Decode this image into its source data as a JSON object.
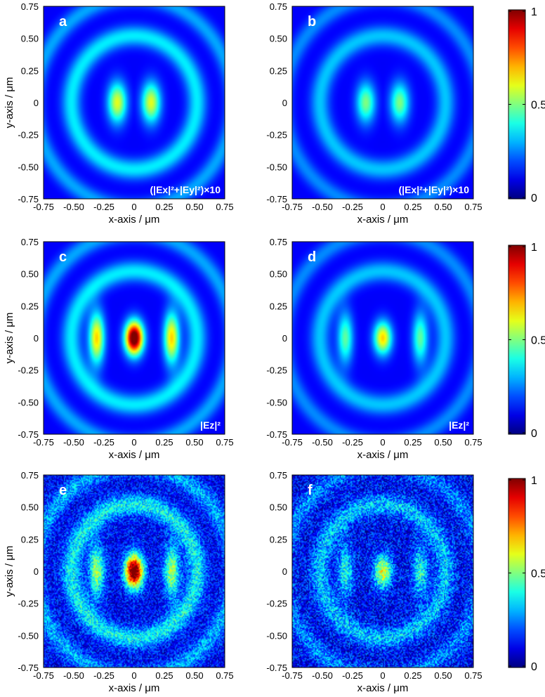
{
  "colorbar_ticks": [
    "1",
    "0.5",
    "0"
  ],
  "axis_ticks": [
    "-0.75",
    "-0.50",
    "-0.25",
    "0",
    "0.25",
    "0.50",
    "0.75"
  ],
  "colors": {
    "jet": [
      "#00008f",
      "#0000ff",
      "#00ffff",
      "#ffff00",
      "#ff0000",
      "#800000"
    ],
    "panel_background": "#0a1f9c",
    "panel_label": "#ffffff"
  },
  "chart_data": [
    {
      "panel": "a",
      "type": "heatmap",
      "xlabel": "x-axis / μm",
      "ylabel": "y-axis / μm",
      "xlim": [
        -0.75,
        0.75
      ],
      "ylim": [
        -0.75,
        0.75
      ],
      "annotation": "(|Ex|²+|Ey|²)×10",
      "colorscale": "jet",
      "zlim": [
        0,
        1
      ],
      "features": {
        "center_lobe_peak": 0.48,
        "side_lobe_peak": 0.0,
        "ring_level": 0.24,
        "noise": 0
      }
    },
    {
      "panel": "b",
      "type": "heatmap",
      "xlabel": "x-axis / μm",
      "ylabel": "",
      "xlim": [
        -0.75,
        0.75
      ],
      "ylim": [
        -0.75,
        0.75
      ],
      "annotation": "(|Ex|²+|Ey|²)×10",
      "colorscale": "jet",
      "zlim": [
        0,
        1
      ],
      "features": {
        "center_lobe_peak": 0.38,
        "side_lobe_peak": 0.0,
        "ring_level": 0.2,
        "noise": 0
      }
    },
    {
      "panel": "c",
      "type": "heatmap",
      "xlabel": "x-axis / μm",
      "ylabel": "y-axis / μm",
      "xlim": [
        -0.75,
        0.75
      ],
      "ylim": [
        -0.75,
        0.75
      ],
      "annotation": "|Ez|²",
      "colorscale": "jet",
      "zlim": [
        0,
        1
      ],
      "features": {
        "center_peak": 1.0,
        "side_lobe_peak": 0.55,
        "ring_level": 0.24,
        "noise": 0
      }
    },
    {
      "panel": "d",
      "type": "heatmap",
      "xlabel": "x-axis / μm",
      "ylabel": "",
      "xlim": [
        -0.75,
        0.75
      ],
      "ylim": [
        -0.75,
        0.75
      ],
      "annotation": "|Ez|²",
      "colorscale": "jet",
      "zlim": [
        0,
        1
      ],
      "features": {
        "center_peak": 0.55,
        "side_lobe_peak": 0.35,
        "ring_level": 0.2,
        "noise": 0
      }
    },
    {
      "panel": "e",
      "type": "heatmap",
      "xlabel": "x-axis / μm",
      "ylabel": "y-axis / μm",
      "xlim": [
        -0.75,
        0.75
      ],
      "ylim": [
        -0.75,
        0.75
      ],
      "annotation": "",
      "colorscale": "jet",
      "zlim": [
        0,
        1
      ],
      "features": {
        "center_peak": 1.0,
        "side_lobe_peak": 0.42,
        "ring_level": 0.26,
        "noise": 0.12
      }
    },
    {
      "panel": "f",
      "type": "heatmap",
      "xlabel": "x-axis / μm",
      "ylabel": "",
      "xlim": [
        -0.75,
        0.75
      ],
      "ylim": [
        -0.75,
        0.75
      ],
      "annotation": "",
      "colorscale": "jet",
      "zlim": [
        0,
        1
      ],
      "features": {
        "center_peak": 0.48,
        "side_lobe_peak": 0.28,
        "ring_level": 0.2,
        "noise": 0.14
      }
    }
  ]
}
